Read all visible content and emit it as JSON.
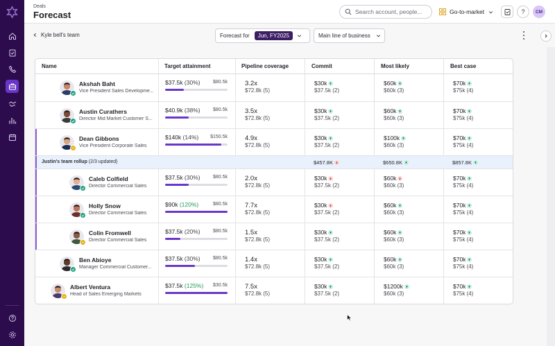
{
  "sidebar": {
    "items": [
      {
        "icon": "home-icon"
      },
      {
        "icon": "clipboard-icon"
      },
      {
        "icon": "phone-icon"
      },
      {
        "icon": "briefcase-icon"
      },
      {
        "icon": "handshake-icon"
      },
      {
        "icon": "bar-chart-icon"
      },
      {
        "icon": "calendar-icon"
      }
    ],
    "bottom": [
      {
        "icon": "help-icon"
      },
      {
        "icon": "settings-icon"
      }
    ],
    "accent": "#2d0c4e",
    "active_color": "#6a35c9"
  },
  "header": {
    "breadcrumb": "Deals",
    "title": "Forecast",
    "search_placeholder": "Search account, people...",
    "workspace": "Go-to-market",
    "help_label": "?",
    "user_initials": "CM"
  },
  "subheader": {
    "back_label": "Kyle bell's team",
    "forecast_for_label": "Forecast for",
    "period": "Jun, FY2025",
    "line_of_business": "Main line of business"
  },
  "table": {
    "columns": [
      "Name",
      "Target attainment",
      "Pipeline coverage",
      "Commit",
      "Most likely",
      "Best case"
    ],
    "rows": [
      {
        "name": "Akshah Baht",
        "title": "Vice President Sales Developme...",
        "att_value": "$37.5k",
        "att_pct": "(30%)",
        "att_green": false,
        "att_target": "$80.5k",
        "progress": 0.3,
        "cov": "3.2x",
        "cov_sub": "$72.8k (5)",
        "commit": "$30k",
        "commit_dir": "up",
        "commit_sub": "$37.5k (2)",
        "likely": "$60k",
        "likely_dir": "up",
        "likely_sub": "$60k (3)",
        "best": "$70k",
        "best_dir": "up",
        "best_sub": "$75k (4)",
        "status": "check",
        "indent": 0,
        "expand": true
      },
      {
        "name": "Austin Curathers",
        "title": "Director Mid Market Customer S...",
        "att_value": "$40.9k",
        "att_pct": "(38%)",
        "att_green": false,
        "att_target": "$80.5k",
        "progress": 0.38,
        "cov": "3.5x",
        "cov_sub": "$72.8k (5)",
        "commit": "$30k",
        "commit_dir": "up",
        "commit_sub": "$37.5k (2)",
        "likely": "$60k",
        "likely_dir": "up",
        "likely_sub": "$60k (3)",
        "best": "$70k",
        "best_dir": "up",
        "best_sub": "$75k (4)",
        "status": "check",
        "indent": 0,
        "expand": true
      },
      {
        "name": "Dean Gibbons",
        "title": "Vice President Corporate Sales",
        "att_value": "$140k",
        "att_pct": "(14%)",
        "att_green": false,
        "att_target": "$150.5k",
        "progress": 0.9,
        "cov": "4.9x",
        "cov_sub": "$72.8k (5)",
        "commit": "$30k",
        "commit_dir": "up",
        "commit_sub": "$37.5k (2)",
        "likely": "$100k",
        "likely_dir": "up",
        "likely_sub": "$60k (3)",
        "best": "$70k",
        "best_dir": "up",
        "best_sub": "$75k (4)",
        "status": "pending",
        "indent": 0,
        "expand": true,
        "expanded": true
      },
      {
        "name": "Caleb Colfield",
        "title": "Director Commercial Sales",
        "att_value": "$37.5k",
        "att_pct": "(30%)",
        "att_green": false,
        "att_target": "$80.5k",
        "progress": 0.38,
        "cov": "2.0x",
        "cov_sub": "$72.8k (5)",
        "commit": "$30k",
        "commit_dir": "down",
        "commit_sub": "$37.5k (2)",
        "likely": "$60k",
        "likely_dir": "down",
        "likely_sub": "$60k (3)",
        "best": "$70k",
        "best_dir": "up",
        "best_sub": "$75k (4)",
        "status": "check",
        "indent": 1,
        "expand": true
      },
      {
        "name": "Holly Snow",
        "title": "Director Commercial Sales",
        "att_value": "$90k",
        "att_pct": "(120%)",
        "att_green": true,
        "att_target": "$80.5k",
        "progress": 1.0,
        "cov": "7.7x",
        "cov_sub": "$72.8k (5)",
        "commit": "$30k",
        "commit_dir": "down",
        "commit_sub": "$37.5k (2)",
        "likely": "$60k",
        "likely_dir": "up",
        "likely_sub": "$60k (3)",
        "best": "$70k",
        "best_dir": "up",
        "best_sub": "$75k (4)",
        "status": "check",
        "indent": 1,
        "expand": true
      },
      {
        "name": "Colin Fromwell",
        "title": "Director Commercial Sales",
        "att_value": "$37.5k",
        "att_pct": "(20%)",
        "att_green": false,
        "att_target": "$80.5k",
        "progress": 0.24,
        "cov": "1.5x",
        "cov_sub": "$72.8k (5)",
        "commit": "$30k",
        "commit_dir": "up",
        "commit_sub": "$37.5k (2)",
        "likely": "$60k",
        "likely_dir": "up",
        "likely_sub": "$60k (3)",
        "best": "$70k",
        "best_dir": "up",
        "best_sub": "$75k (4)",
        "status": "pending",
        "indent": 1,
        "expand": true
      },
      {
        "name": "Ben Abioye",
        "title": "Manager Commercial Customer...",
        "att_value": "$37.5k",
        "att_pct": "(30%)",
        "att_green": false,
        "att_target": "$80.5k",
        "progress": 0.48,
        "cov": "1.4x",
        "cov_sub": "$72.8k (5)",
        "commit": "$30k",
        "commit_dir": "up",
        "commit_sub": "$37.5k (2)",
        "likely": "$60k",
        "likely_dir": "up",
        "likely_sub": "$60k (3)",
        "best": "$70k",
        "best_dir": "up",
        "best_sub": "$75k (4)",
        "status": "check",
        "indent": 0,
        "expand": true
      },
      {
        "name": "Albert Ventura",
        "title": "Head of Sales Emerging Markets",
        "att_value": "$37.5k",
        "att_pct": "(125%)",
        "att_green": true,
        "att_target": "$30.5k",
        "progress": 1.0,
        "cov": "7.5x",
        "cov_sub": "$72.8k (5)",
        "commit": "$30k",
        "commit_dir": "up",
        "commit_sub": "$37.5k (2)",
        "likely": "$1200k",
        "likely_dir": "up",
        "likely_sub": "$60k (3)",
        "best": "$70k",
        "best_dir": "up",
        "best_sub": "$75k (4)",
        "status": "pending",
        "indent": -1,
        "expand": true
      }
    ],
    "rollup": {
      "label": "Justin's team rollup",
      "updated": "(2/3 updated)",
      "commit": "$457.8K",
      "commit_dir": "down",
      "likely": "$650.8K",
      "likely_dir": "up",
      "best": "$857.8K",
      "best_dir": "up"
    }
  }
}
